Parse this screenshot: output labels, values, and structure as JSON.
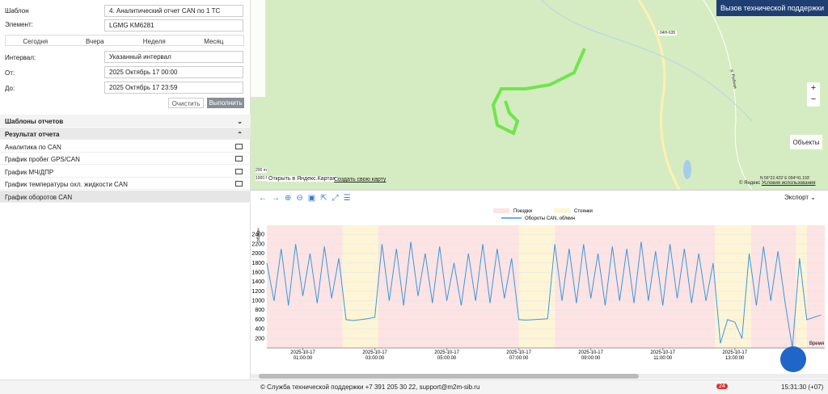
{
  "sidebar": {
    "template_label": "Шаблон",
    "template": "4. Аналитический отчет CAN по 1 ТС",
    "element_label": "Элемент:",
    "element": "LGMG KM6281",
    "tabs": [
      "Сегодня",
      "Вчера",
      "Неделя",
      "Месяц"
    ],
    "interval_label": "Интервал:",
    "interval": "Указанный интервал",
    "from_label": "От:",
    "from": "2025 Октябрь 17 00:00",
    "to_label": "До:",
    "to": "2025 Октябрь 17 23:59",
    "clear": "Очистить",
    "run": "Выполнить",
    "templates_header": "Шаблоны отчетов",
    "result_header": "Результат отчета",
    "results": [
      "Аналитика по CAN",
      "График пробег GPS/CAN",
      "График МЧ/ДПР",
      "График температуры охл. жидкости CAN",
      "График оборотов CAN"
    ]
  },
  "map": {
    "support_button": "Вызов технической поддержки",
    "objects_button": "Объекты",
    "scale_m": "200 m",
    "scale_ft": "1000 ft",
    "open_yandex": "Открыть в Яндекс.Картах",
    "create_map": "Создать свою карту",
    "copyright": "© Яндекс",
    "terms": "Условия использования",
    "coords": "N 56°22.429' E 094°41.193'",
    "road": "04Н-635",
    "river": "р. Рыбная"
  },
  "chart_toolbar": {
    "export": "Экспорт"
  },
  "chart_data": {
    "type": "line",
    "ylabel": "об/мин",
    "xlabel": "Время",
    "xlim": [
      0,
      15.5
    ],
    "xticks": [
      {
        "value": 1,
        "label": "2025-10-17 01:00:00"
      },
      {
        "value": 3,
        "label": "2025-10-17 03:00:00"
      },
      {
        "value": 5,
        "label": "2025-10-17 05:00:00"
      },
      {
        "value": 7,
        "label": "2025-10-17 07:00:00"
      },
      {
        "value": 9,
        "label": "2025-10-17 09:00:00"
      },
      {
        "value": 11,
        "label": "2025-10-17 11:00:00"
      },
      {
        "value": 13,
        "label": "2025-10-17 13:00:00"
      }
    ],
    "ylim": [
      0,
      2600
    ],
    "yticks": [
      200,
      400,
      600,
      800,
      1000,
      1200,
      1400,
      1600,
      1800,
      2000,
      2200,
      2400
    ],
    "bands": [
      {
        "name": "Поездки",
        "color": "#fde3e3",
        "ranges": [
          [
            0,
            2.1
          ],
          [
            3.1,
            7.0
          ],
          [
            8.0,
            12.45
          ],
          [
            13.45,
            14.7
          ],
          [
            15.0,
            15.5
          ]
        ]
      },
      {
        "name": "Стоянки",
        "color": "#fdf5d6",
        "ranges": [
          [
            2.1,
            3.1
          ],
          [
            7.0,
            8.0
          ],
          [
            12.45,
            13.45
          ],
          [
            14.7,
            15.0
          ]
        ]
      }
    ],
    "series": [
      {
        "name": "Обороты CAN, об/мин",
        "color": "#3a97de",
        "x": [
          0,
          0.2,
          0.4,
          0.6,
          0.8,
          1.0,
          1.2,
          1.4,
          1.6,
          1.8,
          2.0,
          2.2,
          2.4,
          2.6,
          2.8,
          3.0,
          3.2,
          3.4,
          3.6,
          3.8,
          4.0,
          4.2,
          4.4,
          4.6,
          4.8,
          5.0,
          5.2,
          5.4,
          5.6,
          5.8,
          6.0,
          6.2,
          6.4,
          6.6,
          6.8,
          7.0,
          7.2,
          7.4,
          7.6,
          7.8,
          8.0,
          8.2,
          8.4,
          8.6,
          8.8,
          9.0,
          9.2,
          9.4,
          9.6,
          9.8,
          10.0,
          10.2,
          10.4,
          10.6,
          10.8,
          11.0,
          11.2,
          11.4,
          11.6,
          11.8,
          12.0,
          12.2,
          12.4,
          12.6,
          12.8,
          13.0,
          13.2,
          13.4,
          13.6,
          13.8,
          14.0,
          14.2,
          14.4,
          14.6,
          14.8,
          15.0,
          15.2,
          15.4
        ],
        "values": [
          1800,
          1000,
          2100,
          900,
          2200,
          1100,
          2000,
          950,
          2150,
          1050,
          1900,
          600,
          580,
          600,
          620,
          650,
          2200,
          1000,
          2100,
          900,
          2250,
          1100,
          2000,
          950,
          2150,
          1000,
          1800,
          900,
          2000,
          1000,
          2200,
          950,
          2100,
          1050,
          1900,
          600,
          590,
          600,
          610,
          620,
          2200,
          1000,
          2100,
          950,
          2200,
          1050,
          2000,
          900,
          2150,
          1000,
          2100,
          950,
          2250,
          1000,
          2050,
          900,
          2200,
          1050,
          2100,
          950,
          2000,
          1000,
          1800,
          100,
          600,
          550,
          200,
          2000,
          900,
          2150,
          1000,
          2050,
          950,
          0,
          1900,
          600,
          650,
          700
        ]
      }
    ]
  },
  "footer": {
    "support": "© Служба технической поддержки +7 391 205 30 22, support@m2m-sib.ru",
    "badge": 24,
    "time": "15:31:30 (+07)"
  }
}
